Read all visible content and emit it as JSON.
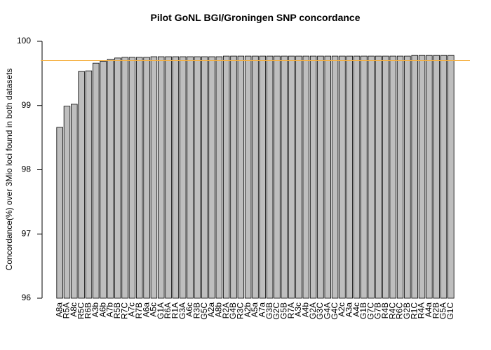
{
  "chart_data": {
    "type": "bar",
    "title": "Pilot GoNL BGI/Groningen SNP concordance",
    "y_label": "Concordance(%) over 3Mio loci found in both datasets",
    "categories": [
      "A8a",
      "R5A",
      "A8c",
      "R5C",
      "R6B",
      "A3b",
      "A6b",
      "A7b",
      "R5B",
      "R7C",
      "A7c",
      "R7B",
      "A6a",
      "A5c",
      "G1A",
      "R6A",
      "R1A",
      "G3A",
      "A6c",
      "R3B",
      "G5C",
      "A2a",
      "A8b",
      "R2A",
      "G4B",
      "R3C",
      "A2b",
      "A5a",
      "A7a",
      "G3B",
      "G2C",
      "G5B",
      "R7A",
      "A3c",
      "A4b",
      "G2A",
      "G3C",
      "G4A",
      "G4C",
      "A2c",
      "A3a",
      "A4c",
      "G1B",
      "G7C",
      "G7B",
      "R4B",
      "R4C",
      "R6C",
      "G2B",
      "R1C",
      "R4A",
      "A4a",
      "R2B",
      "G5A",
      "G1C"
    ],
    "values": [
      98.66,
      98.99,
      99.02,
      99.53,
      99.54,
      99.66,
      99.69,
      99.72,
      99.74,
      99.75,
      99.75,
      99.75,
      99.75,
      99.76,
      99.76,
      99.76,
      99.76,
      99.76,
      99.76,
      99.76,
      99.76,
      99.76,
      99.76,
      99.77,
      99.77,
      99.77,
      99.77,
      99.77,
      99.77,
      99.77,
      99.77,
      99.77,
      99.77,
      99.77,
      99.77,
      99.77,
      99.77,
      99.77,
      99.77,
      99.77,
      99.77,
      99.77,
      99.77,
      99.77,
      99.77,
      99.77,
      99.77,
      99.77,
      99.77,
      99.78,
      99.78,
      99.78,
      99.78,
      99.78,
      99.78
    ],
    "color": "#bebebe",
    "reference_line": {
      "value": 99.7,
      "color": "#f5b041"
    },
    "ylim": [
      96,
      100
    ],
    "yticks": [
      96,
      97,
      98,
      99,
      100
    ]
  }
}
